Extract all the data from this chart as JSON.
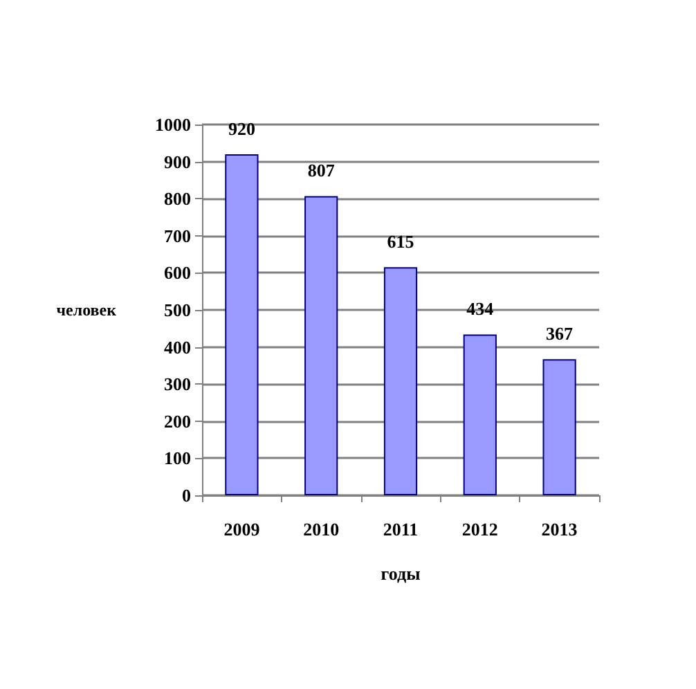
{
  "chart_data": {
    "type": "bar",
    "xlabel": "годы",
    "ylabel": "человек",
    "categories": [
      "2009",
      "2010",
      "2011",
      "2012",
      "2013"
    ],
    "values": [
      920,
      807,
      615,
      434,
      367
    ],
    "color": "#9999ff",
    "ylim": [
      0,
      1000
    ],
    "yticks": [
      0,
      100,
      200,
      300,
      400,
      500,
      600,
      700,
      800,
      900,
      1000
    ],
    "grid": "y",
    "data_labels": true
  }
}
